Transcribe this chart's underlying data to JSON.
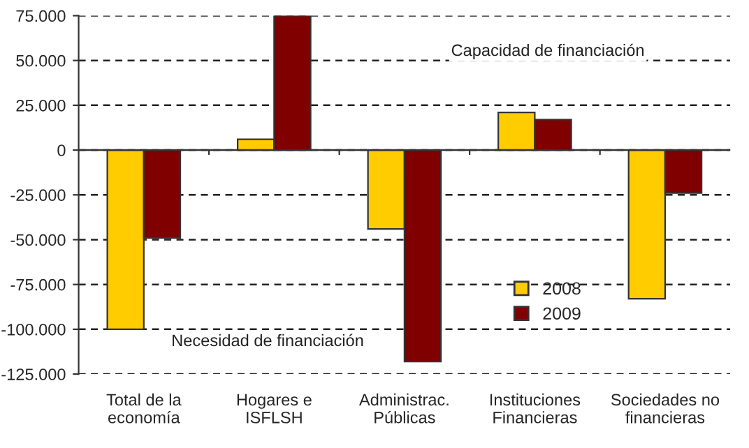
{
  "chart_data": {
    "type": "bar",
    "categories": [
      "Total de la\neconomía",
      "Hogares e\nISFLSH",
      "Administrac.\nPúblicas",
      "Instituciones\nFinancieras",
      "Sociedades no\nfinancieras"
    ],
    "series": [
      {
        "name": "2008",
        "color": "#ffcc00",
        "values": [
          -100000,
          6000,
          -44000,
          21000,
          -83000
        ]
      },
      {
        "name": "2009",
        "color": "#800000",
        "values": [
          -49000,
          75000,
          -118000,
          17000,
          -24000
        ]
      }
    ],
    "ylim": [
      -125000,
      75000
    ],
    "yticks": [
      {
        "value": -125000,
        "label": "-125.000"
      },
      {
        "value": -100000,
        "label": "-100.000"
      },
      {
        "value": -75000,
        "label": "-75.000"
      },
      {
        "value": -50000,
        "label": "-50.000"
      },
      {
        "value": -25000,
        "label": "-25.000"
      },
      {
        "value": 0,
        "label": "0"
      },
      {
        "value": 25000,
        "label": "25.000"
      },
      {
        "value": 50000,
        "label": "50.000"
      },
      {
        "value": 75000,
        "label": "75.000"
      }
    ],
    "grid": "y",
    "legend": "bottom center",
    "annotations": [
      "Capacidad de financiación",
      "Necesidad de financiación"
    ]
  }
}
